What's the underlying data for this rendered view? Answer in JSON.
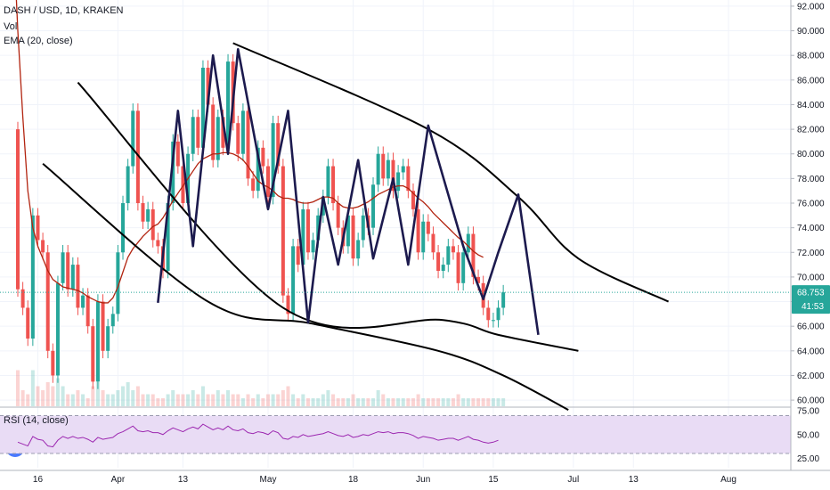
{
  "legend": {
    "symbol": "DASH / USD, 1D, KRAKEN",
    "volume": "Vol",
    "ema": "EMA (20, close)",
    "rsi": "RSI (14, close)"
  },
  "last_price_label": "68.753",
  "countdown_label": "41:53",
  "colors": {
    "up": "#26a69a",
    "down": "#ef5350",
    "ema": "#b22410",
    "pattern": "#1c1a4e",
    "channel": "#000000",
    "rsi_line": "#9c27b0",
    "rsi_band": "#e9dcf5",
    "last_price_line": "#26a69a"
  },
  "chart_data": {
    "type": "candlestick",
    "price_axis": {
      "range": [
        59.5,
        92.5
      ],
      "ticks": [
        "60.000",
        "62.000",
        "64.000",
        "66.000",
        "68.000",
        "70.000",
        "72.000",
        "74.000",
        "76.000",
        "78.000",
        "80.000",
        "82.000",
        "84.000",
        "86.000",
        "88.000",
        "90.000",
        "92.000"
      ]
    },
    "rsi_axis": {
      "range": [
        15,
        78
      ],
      "ticks": [
        "25.00",
        "50.00",
        "75.00"
      ],
      "band": [
        30,
        70
      ]
    },
    "x_axis": {
      "ticks": [
        {
          "label": "16",
          "day": 4
        },
        {
          "label": "Apr",
          "day": 20
        },
        {
          "label": "13",
          "day": 33
        },
        {
          "label": "May",
          "day": 50
        },
        {
          "label": "18",
          "day": 67
        },
        {
          "label": "Jun",
          "day": 81
        },
        {
          "label": "15",
          "day": 95
        },
        {
          "label": "Jul",
          "day": 111
        },
        {
          "label": "13",
          "day": 123
        },
        {
          "label": "Aug",
          "day": 142
        }
      ]
    },
    "candles_open_close": [
      [
        82.0,
        69.0
      ],
      [
        69.0,
        67.5
      ],
      [
        67.5,
        65.0
      ],
      [
        65.0,
        75.0
      ],
      [
        75.0,
        73.0
      ],
      [
        73.0,
        72.0
      ],
      [
        72.0,
        64.0
      ],
      [
        64.0,
        62.0
      ],
      [
        62.0,
        69.5
      ],
      [
        69.5,
        72.0
      ],
      [
        72.0,
        69.0
      ],
      [
        69.0,
        71.0
      ],
      [
        71.0,
        67.5
      ],
      [
        67.5,
        68.5
      ],
      [
        68.5,
        66.0
      ],
      [
        66.0,
        61.5
      ],
      [
        61.5,
        68.0
      ],
      [
        68.0,
        64.0
      ],
      [
        64.0,
        66.0
      ],
      [
        66.0,
        67.0
      ],
      [
        67.0,
        72.0
      ],
      [
        72.0,
        76.0
      ],
      [
        76.0,
        79.0
      ],
      [
        79.0,
        83.5
      ],
      [
        83.5,
        76.0
      ],
      [
        76.0,
        74.5
      ],
      [
        74.5,
        75.5
      ],
      [
        75.5,
        73.0
      ],
      [
        73.0,
        72.5
      ],
      [
        72.5,
        70.5
      ],
      [
        70.5,
        76.0
      ],
      [
        76.0,
        81.0
      ],
      [
        81.0,
        79.0
      ],
      [
        79.0,
        76.0
      ],
      [
        76.0,
        80.0
      ],
      [
        80.0,
        83.0
      ],
      [
        83.0,
        80.5
      ],
      [
        80.5,
        87.0
      ],
      [
        87.0,
        84.0
      ],
      [
        84.0,
        79.5
      ],
      [
        79.5,
        83.0
      ],
      [
        83.0,
        80.5
      ],
      [
        80.5,
        87.5
      ],
      [
        87.5,
        82.5
      ],
      [
        82.5,
        80.0
      ],
      [
        80.0,
        83.5
      ],
      [
        83.5,
        78.0
      ],
      [
        78.0,
        77.0
      ],
      [
        77.0,
        80.5
      ],
      [
        80.5,
        79.0
      ],
      [
        79.0,
        76.5
      ],
      [
        76.5,
        82.5
      ],
      [
        82.5,
        79.0
      ],
      [
        79.0,
        68.5
      ],
      [
        68.5,
        67.0
      ],
      [
        67.0,
        72.5
      ],
      [
        72.5,
        71.0
      ],
      [
        71.0,
        75.5
      ],
      [
        75.5,
        72.0
      ],
      [
        72.0,
        73.0
      ],
      [
        73.0,
        75.0
      ],
      [
        75.0,
        76.5
      ],
      [
        76.5,
        79.0
      ],
      [
        79.0,
        76.0
      ],
      [
        76.0,
        74.0
      ],
      [
        74.0,
        72.5
      ],
      [
        72.5,
        75.0
      ],
      [
        75.0,
        71.5
      ],
      [
        71.5,
        73.0
      ],
      [
        73.0,
        75.0
      ],
      [
        75.0,
        74.0
      ],
      [
        74.0,
        77.5
      ],
      [
        77.5,
        80.0
      ],
      [
        80.0,
        78.0
      ],
      [
        78.0,
        79.5
      ],
      [
        79.5,
        77.0
      ],
      [
        77.0,
        78.5
      ],
      [
        78.5,
        79.0
      ],
      [
        79.0,
        77.0
      ],
      [
        77.0,
        75.5
      ],
      [
        75.5,
        72.0
      ],
      [
        72.0,
        74.5
      ],
      [
        74.5,
        73.5
      ],
      [
        73.5,
        72.0
      ],
      [
        72.0,
        70.5
      ],
      [
        70.5,
        71.0
      ],
      [
        71.0,
        72.5
      ],
      [
        72.5,
        72.0
      ],
      [
        72.0,
        69.5
      ],
      [
        69.5,
        72.0
      ],
      [
        72.0,
        73.5
      ],
      [
        73.5,
        70.0
      ],
      [
        70.0,
        69.5
      ],
      [
        69.5,
        67.5
      ],
      [
        67.5,
        66.5
      ],
      [
        66.5,
        66.5
      ],
      [
        66.5,
        67.5
      ],
      [
        67.5,
        68.753
      ]
    ],
    "ema_20": [
      99.0,
      90.0,
      83.0,
      77.0,
      74.0,
      72.5,
      71.5,
      70.5,
      69.8,
      69.5,
      69.2,
      69.1,
      69.0,
      68.9,
      68.7,
      68.4,
      68.2,
      68.0,
      67.9,
      67.9,
      68.3,
      69.2,
      70.4,
      71.6,
      72.3,
      72.8,
      73.3,
      73.7,
      74.1,
      74.3,
      74.8,
      75.5,
      76.2,
      76.8,
      77.4,
      78.0,
      78.6,
      79.2,
      79.6,
      79.8,
      80.0,
      80.0,
      80.1,
      80.1,
      80.0,
      79.8,
      79.5,
      79.0,
      78.4,
      77.8,
      77.5,
      77.3,
      77.0,
      76.6,
      76.4,
      76.4,
      76.3,
      76.1,
      76.0,
      76.0,
      76.1,
      76.3,
      76.5,
      76.5,
      76.4,
      76.0,
      75.7,
      75.6,
      75.6,
      75.7,
      75.9,
      76.1,
      76.4,
      76.7,
      76.9,
      77.1,
      77.3,
      77.4,
      77.4,
      77.2,
      76.8,
      76.4,
      76.1,
      75.7,
      75.2,
      74.8,
      74.4,
      74.0,
      73.6,
      73.2,
      72.9,
      72.5,
      72.1,
      71.8,
      71.6
    ],
    "ema_start_day": -1,
    "volume_relative": [
      0.9,
      0.4,
      0.3,
      0.9,
      0.5,
      0.4,
      0.6,
      0.5,
      0.7,
      0.5,
      0.3,
      0.3,
      0.4,
      0.3,
      0.2,
      0.5,
      0.6,
      0.4,
      0.3,
      0.3,
      0.4,
      0.5,
      0.6,
      0.4,
      0.5,
      0.3,
      0.3,
      0.3,
      0.2,
      0.2,
      0.3,
      0.4,
      0.3,
      0.3,
      0.3,
      0.4,
      0.3,
      0.5,
      0.3,
      0.3,
      0.4,
      0.3,
      0.4,
      0.3,
      0.3,
      0.2,
      0.3,
      0.2,
      0.3,
      0.2,
      0.3,
      0.3,
      0.3,
      0.4,
      0.5,
      0.3,
      0.2,
      0.3,
      0.2,
      0.2,
      0.2,
      0.3,
      0.4,
      0.3,
      0.2,
      0.2,
      0.2,
      0.3,
      0.2,
      0.2,
      0.2,
      0.2,
      0.4,
      0.3,
      0.2,
      0.2,
      0.2,
      0.2,
      0.2,
      0.2,
      0.3,
      0.2,
      0.2,
      0.2,
      0.2,
      0.2,
      0.2,
      0.2,
      0.3,
      0.2,
      0.2,
      0.2,
      0.2,
      0.2,
      0.2,
      0.2,
      0.2,
      0.2
    ],
    "rsi": [
      42,
      40,
      38,
      48,
      45,
      44,
      38,
      37,
      44,
      48,
      46,
      48,
      46,
      47,
      45,
      42,
      47,
      45,
      46,
      47,
      51,
      53,
      56,
      59,
      54,
      53,
      54,
      52,
      52,
      50,
      54,
      57,
      55,
      53,
      56,
      58,
      56,
      61,
      58,
      55,
      57,
      55,
      59,
      55,
      54,
      56,
      52,
      51,
      53,
      52,
      50,
      54,
      52,
      46,
      45,
      48,
      47,
      50,
      48,
      49,
      50,
      51,
      53,
      51,
      49,
      48,
      50,
      47,
      48,
      50,
      49,
      51,
      53,
      52,
      53,
      51,
      52,
      52,
      51,
      49,
      46,
      48,
      47,
      46,
      44,
      45,
      46,
      46,
      44,
      46,
      48,
      45,
      44,
      42,
      41,
      42,
      44
    ],
    "channels": [
      {
        "name": "",
        "points": [
          [
            43,
            89.0
          ],
          [
            82,
            82.0
          ],
          [
            100,
            76.5
          ],
          [
            112,
            71.5
          ],
          [
            130,
            68.0
          ]
        ]
      },
      {
        "name": "",
        "points": [
          [
            12,
            85.8
          ],
          [
            53,
            67.5
          ],
          [
            85,
            66.5
          ],
          [
            96,
            65.3
          ],
          [
            112,
            64.0
          ]
        ]
      },
      {
        "name": "",
        "points": [
          [
            5,
            79.2
          ],
          [
            38,
            68.0
          ],
          [
            59,
            66.2
          ],
          [
            84,
            64.0
          ],
          [
            97,
            62.0
          ],
          [
            110,
            59.2
          ]
        ]
      }
    ],
    "pattern_zigzag": [
      [
        28,
        67.9
      ],
      [
        32,
        83.5
      ],
      [
        35,
        72.5
      ],
      [
        39,
        88.0
      ],
      [
        42,
        80.0
      ],
      [
        44,
        88.5
      ],
      [
        50,
        75.5
      ],
      [
        54,
        83.5
      ],
      [
        58,
        66.3
      ],
      [
        61,
        76.5
      ],
      [
        64,
        71.0
      ],
      [
        68,
        79.5
      ],
      [
        71,
        71.5
      ],
      [
        75,
        78.0
      ],
      [
        78,
        71.0
      ],
      [
        82,
        82.3
      ],
      [
        89,
        72.5
      ],
      [
        93,
        68.2
      ],
      [
        96,
        72.0
      ],
      [
        100,
        76.7
      ],
      [
        104,
        65.3
      ]
    ]
  }
}
